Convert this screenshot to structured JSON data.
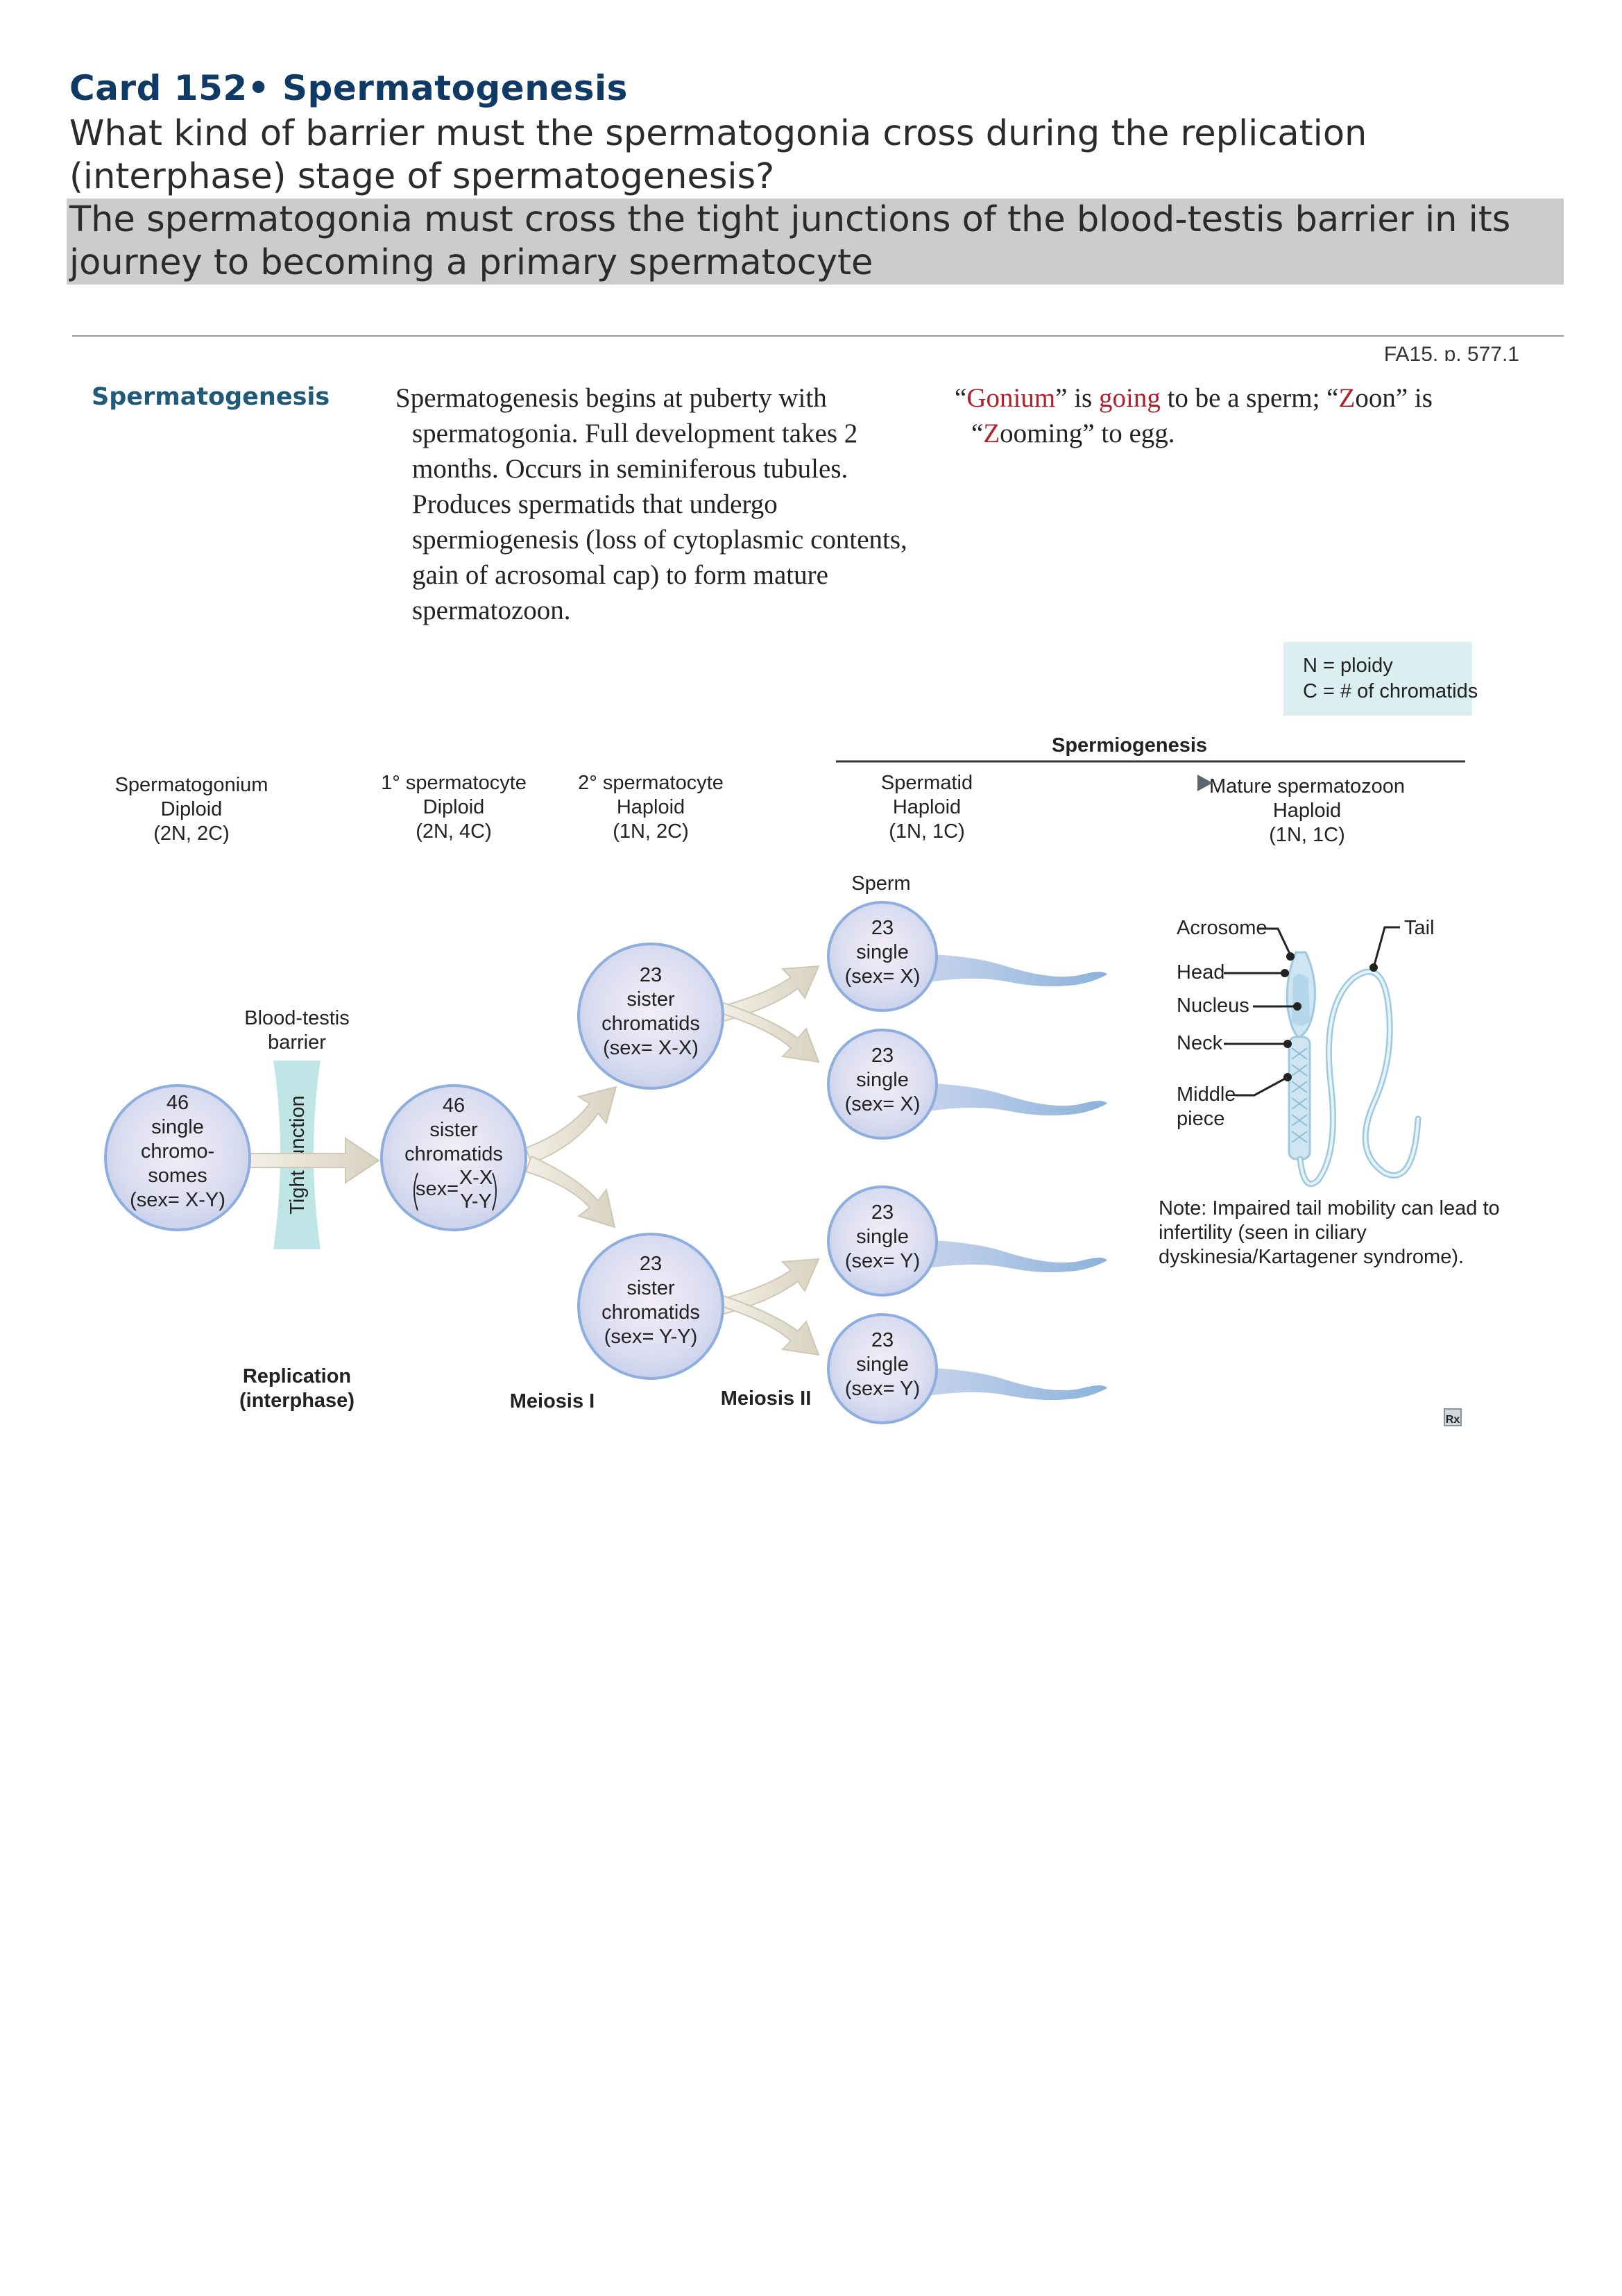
{
  "card": {
    "title": "Card 152• Spermatogenesis",
    "question_line1": "What kind of barrier must the spermatogonia cross during the replication",
    "question_line2": "(interphase) stage of spermatogenesis?",
    "answer_line1": "The spermatogonia must cross the tight junctions of the blood-testis barrier in its",
    "answer_line2": "journey to becoming a primary spermatocyte",
    "reference": "FA15, p. 577.1"
  },
  "figure": {
    "section_heading": "Spermatogenesis",
    "description_lines": [
      "Spermatogenesis begins at puberty with",
      "spermatogonia. Full development takes 2",
      "months. Occurs in seminiferous tubules.",
      "Produces spermatids that undergo",
      "spermiogenesis (loss of cytoplasmic contents,",
      "gain of acrosomal cap) to form mature",
      "spermatozoon."
    ],
    "mnemonic": {
      "q1": "“",
      "gonium": "Gonium",
      "q2": "” is ",
      "going": "going",
      "mid": " to be a sperm; “",
      "z1": "Z",
      "oon": "oon” is",
      "line2_q": "“",
      "z2": "Z",
      "ooming": "ooming” to egg."
    },
    "legend": {
      "line1": "N = ploidy",
      "line2": "C = # of chromatids"
    },
    "spermiogenesis_label": "Spermiogenesis",
    "stages": [
      {
        "l1": "Spermatogonium",
        "l2": "Diploid",
        "l3": "(2N, 2C)"
      },
      {
        "l1": "1° spermatocyte",
        "l2": "Diploid",
        "l3": "(2N, 4C)"
      },
      {
        "l1": "2° spermatocyte",
        "l2": "Haploid",
        "l3": "(1N, 2C)"
      },
      {
        "l1": "Spermatid",
        "l2": "Haploid",
        "l3": "(1N, 1C)"
      },
      {
        "l1": "Mature spermatozoon",
        "l2": "Haploid",
        "l3": "(1N, 1C)"
      }
    ],
    "sperm_label": "Sperm",
    "barrier_label_1": "Blood-testis",
    "barrier_label_2": "barrier",
    "tight_junction": "Tight junction",
    "spermatogonium_cell": [
      "46",
      "single",
      "chromo-",
      "somes",
      "(sex= X-Y)"
    ],
    "primary_cell": {
      "l1": "46",
      "l2": "sister",
      "l3": "chromatids",
      "sex": "sex=",
      "x": "X-X",
      "y": "Y-Y"
    },
    "secondary_x": [
      "23",
      "sister",
      "chromatids",
      "(sex= X-X)"
    ],
    "secondary_y": [
      "23",
      "sister",
      "chromatids",
      "(sex= Y-Y)"
    ],
    "spermatid_x": [
      "23",
      "single",
      "(sex= X)"
    ],
    "spermatid_y": [
      "23",
      "single",
      "(sex= Y)"
    ],
    "phase_labels": {
      "replication_1": "Replication",
      "replication_2": "(interphase)",
      "meiosis1": "Meiosis I",
      "meiosis2": "Meiosis II"
    },
    "anatomy": {
      "acrosome": "Acrosome",
      "tail": "Tail",
      "head": "Head",
      "nucleus": "Nucleus",
      "neck": "Neck",
      "middle": "Middle",
      "piece": "piece"
    },
    "note_lines": [
      "Note: Impaired tail mobility can lead to",
      "infertility (seen in ciliary",
      "dyskinesia/Kartagener syndrome)."
    ],
    "rx_icon": "Rx"
  }
}
